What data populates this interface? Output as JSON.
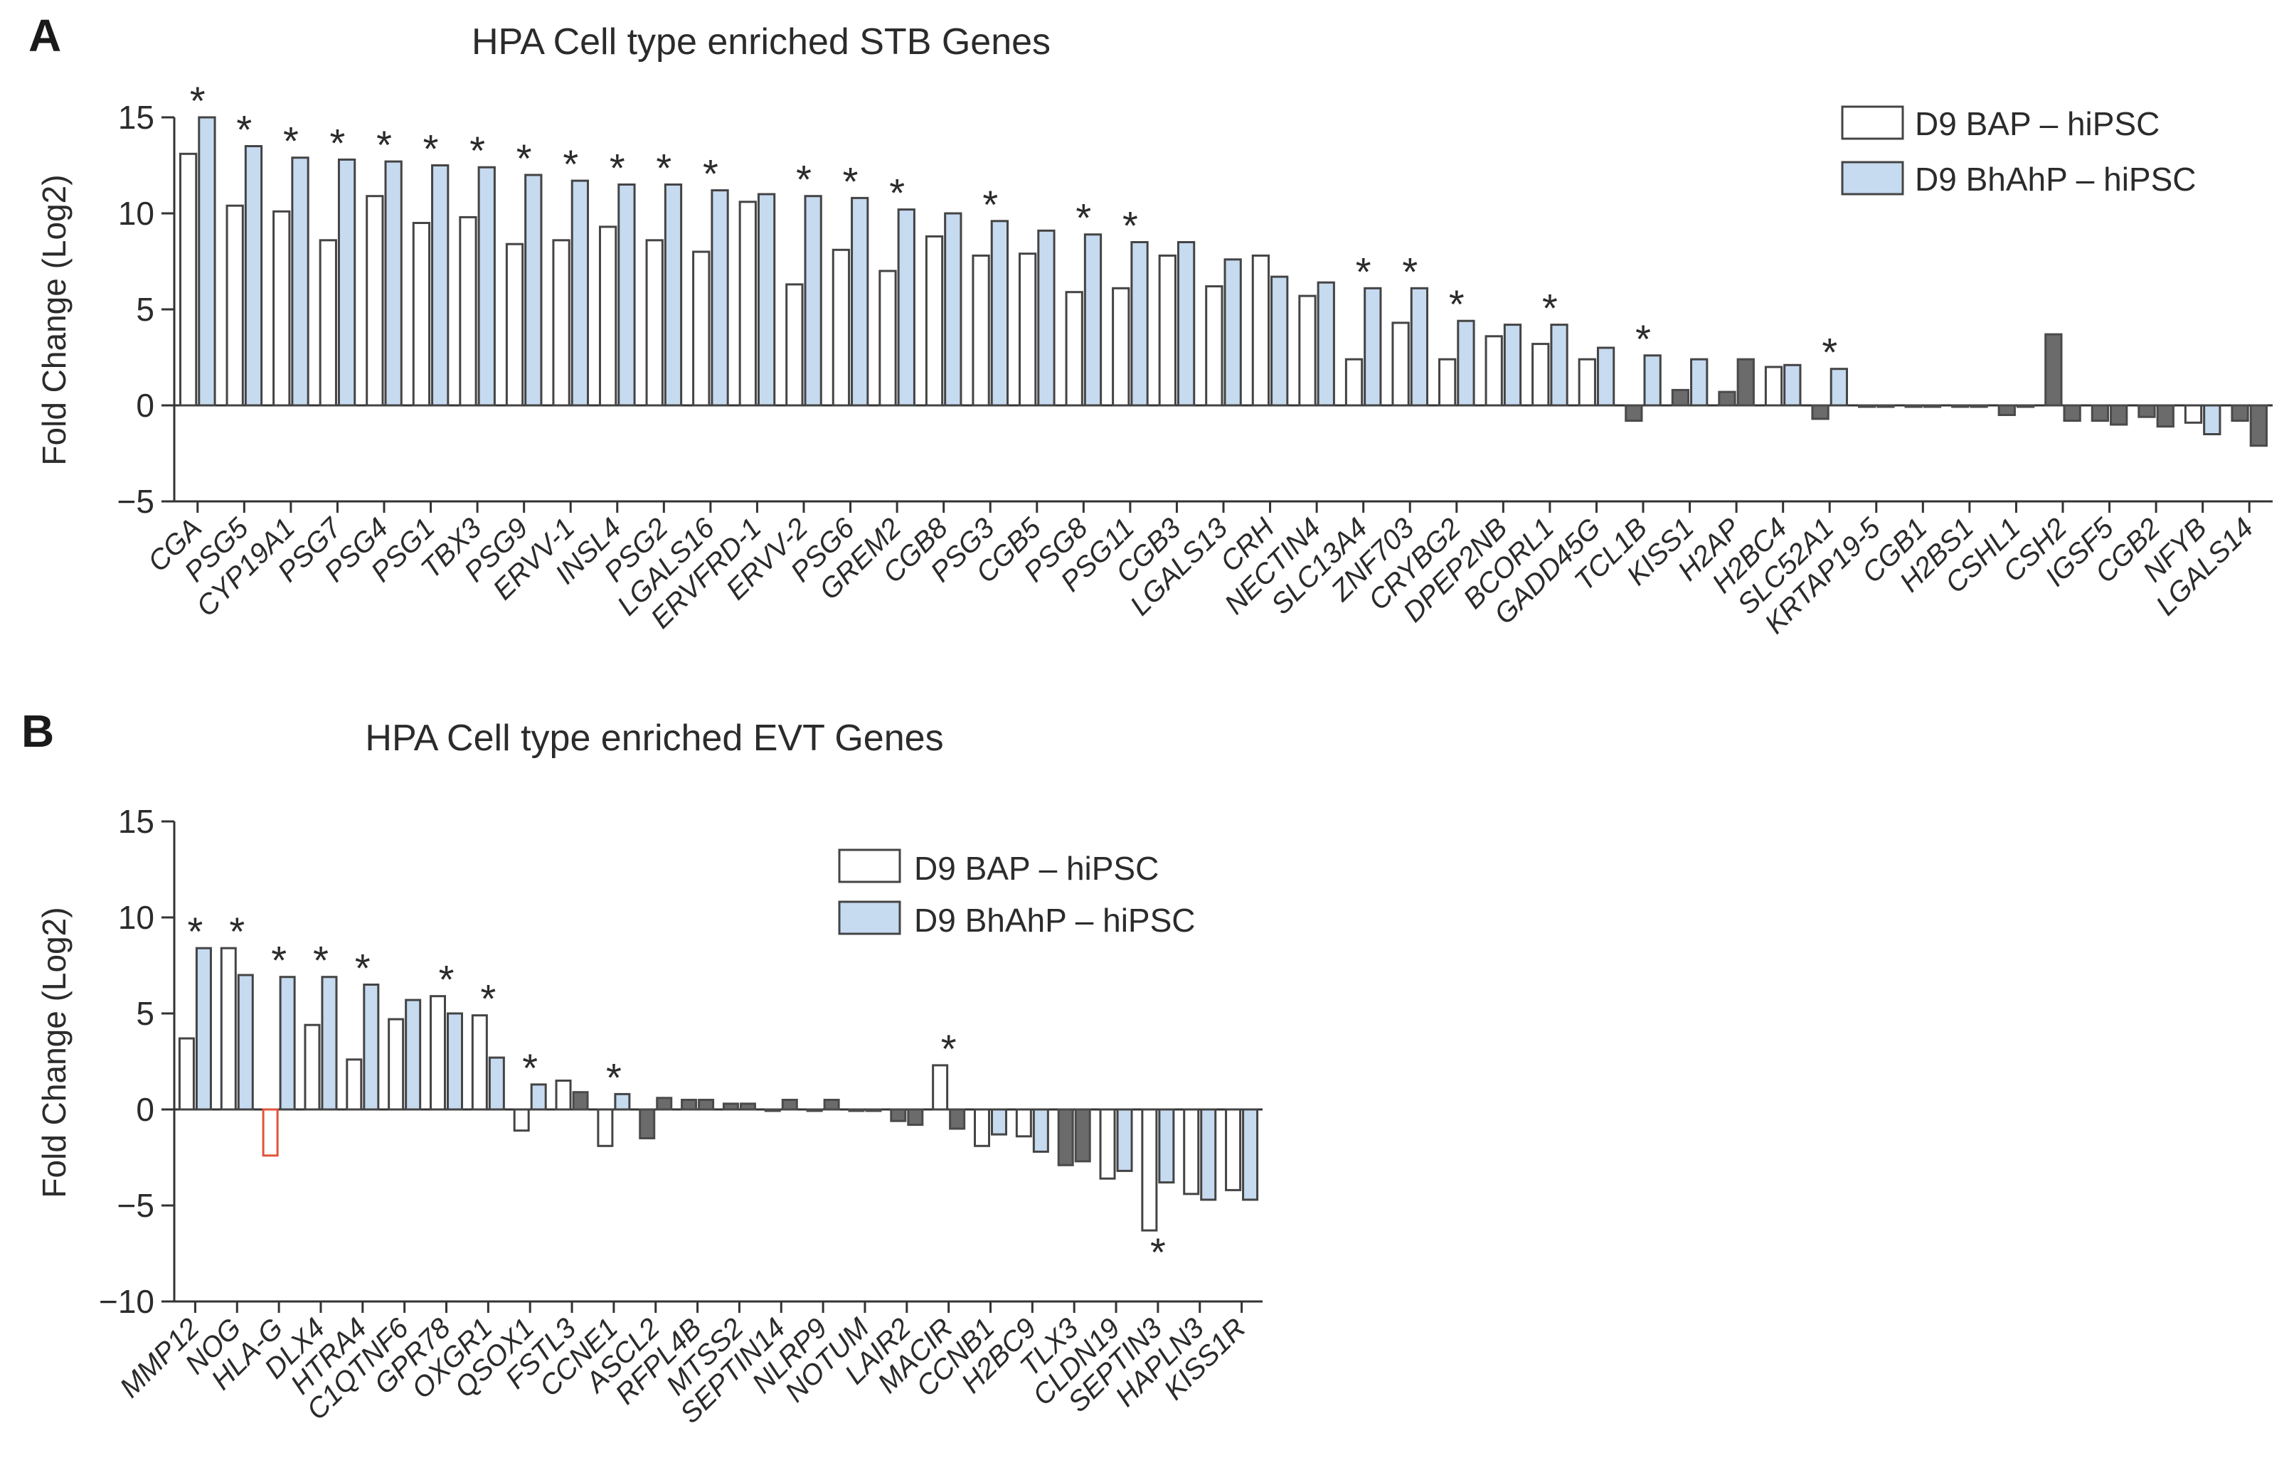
{
  "colors": {
    "bap_fill": "#ffffff",
    "bap_stroke": "#444444",
    "bhahp_fill": "#c6daf0",
    "bhahp_stroke": "#444444",
    "nonsig_fill": "#6b6b6b",
    "highlight_stroke": "#e2533a",
    "axis": "#333333"
  },
  "legend": {
    "bap": "D9 BAP – hiPSC",
    "bhahp": "D9 BhAhP – hiPSC"
  },
  "chart_data": [
    {
      "panel": "A",
      "type": "bar",
      "title": "HPA Cell type enriched STB Genes",
      "xlabel": "",
      "ylabel": "Fold Change (Log2)",
      "ylim": [
        -5,
        15
      ],
      "yticks": [
        -5,
        0,
        5,
        10,
        15
      ],
      "legend_position": "top-right",
      "categories": [
        "CGA",
        "PSG5",
        "CYP19A1",
        "PSG7",
        "PSG4",
        "PSG1",
        "TBX3",
        "PSG9",
        "ERVV-1",
        "INSL4",
        "PSG2",
        "LGALS16",
        "ERVFRD-1",
        "ERVV-2",
        "PSG6",
        "GREM2",
        "CGB8",
        "PSG3",
        "CGB5",
        "PSG8",
        "PSG11",
        "CGB3",
        "LGALS13",
        "CRH",
        "NECTIN4",
        "SLC13A4",
        "ZNF703",
        "CRYBG2",
        "DPEP2NB",
        "BCORL1",
        "GADD45G",
        "TCL1B",
        "KISS1",
        "H2AP",
        "H2BC4",
        "SLC52A1",
        "KRTAP19-5",
        "CGB1",
        "H2BS1",
        "CSHL1",
        "CSH2",
        "IGSF5",
        "CGB2",
        "NFYB",
        "LGALS14"
      ],
      "series": [
        {
          "name": "D9 BAP – hiPSC",
          "values": [
            13.1,
            10.4,
            10.1,
            8.6,
            10.9,
            9.5,
            9.8,
            8.4,
            8.6,
            9.3,
            8.6,
            8.0,
            10.6,
            6.3,
            8.1,
            7.0,
            8.8,
            7.8,
            7.9,
            5.9,
            6.1,
            7.8,
            6.2,
            7.8,
            5.7,
            2.4,
            4.3,
            2.4,
            3.6,
            3.2,
            2.4,
            -0.8,
            0.8,
            0.7,
            2.0,
            -0.7,
            0.0,
            0.0,
            0.0,
            -0.5,
            3.7,
            -0.8,
            -0.6,
            -0.9,
            -0.8
          ]
        },
        {
          "name": "D9 BhAhP – hiPSC",
          "values": [
            15.0,
            13.5,
            12.9,
            12.8,
            12.7,
            12.5,
            12.4,
            12.0,
            11.7,
            11.5,
            11.5,
            11.2,
            11.0,
            10.9,
            10.8,
            10.2,
            10.0,
            9.6,
            9.1,
            8.9,
            8.5,
            8.5,
            7.6,
            6.7,
            6.4,
            6.1,
            6.1,
            4.4,
            4.2,
            4.2,
            3.0,
            2.6,
            2.4,
            2.4,
            2.1,
            1.9,
            0.0,
            0.0,
            0.0,
            0.0,
            -0.8,
            -1.0,
            -1.1,
            -1.5,
            -2.1
          ]
        }
      ],
      "significance": [
        true,
        true,
        true,
        true,
        true,
        true,
        true,
        true,
        true,
        true,
        true,
        true,
        false,
        true,
        true,
        true,
        false,
        true,
        false,
        true,
        true,
        false,
        false,
        false,
        false,
        true,
        true,
        true,
        false,
        true,
        false,
        true,
        false,
        false,
        false,
        true,
        false,
        false,
        false,
        false,
        false,
        false,
        false,
        false,
        false
      ],
      "nonsig_gray": [
        false,
        false,
        false,
        false,
        false,
        false,
        false,
        false,
        false,
        false,
        false,
        false,
        false,
        false,
        false,
        false,
        false,
        false,
        false,
        false,
        false,
        false,
        false,
        false,
        false,
        false,
        false,
        false,
        false,
        false,
        false,
        true,
        true,
        true,
        false,
        true,
        true,
        true,
        true,
        true,
        true,
        true,
        true,
        false,
        true
      ],
      "gray_series": [
        [
          false,
          false,
          false,
          false,
          false,
          false,
          false,
          false,
          false,
          false,
          false,
          false,
          false,
          false,
          false,
          false,
          false,
          false,
          false,
          false,
          false,
          false,
          false,
          false,
          false,
          false,
          false,
          false,
          false,
          false,
          false,
          true,
          true,
          true,
          false,
          true,
          true,
          true,
          true,
          true,
          true,
          true,
          true,
          false,
          true
        ],
        [
          false,
          false,
          false,
          false,
          false,
          false,
          false,
          false,
          false,
          false,
          false,
          false,
          false,
          false,
          false,
          false,
          false,
          false,
          false,
          false,
          false,
          false,
          false,
          false,
          false,
          false,
          false,
          false,
          false,
          false,
          false,
          false,
          false,
          true,
          false,
          false,
          true,
          true,
          true,
          true,
          true,
          true,
          true,
          false,
          true
        ]
      ]
    },
    {
      "panel": "B",
      "type": "bar",
      "title": "HPA Cell type enriched EVT Genes",
      "xlabel": "",
      "ylabel": "Fold Change (Log2)",
      "ylim": [
        -10,
        15
      ],
      "yticks": [
        -10,
        -5,
        0,
        5,
        10,
        15
      ],
      "legend_position": "top-center",
      "categories": [
        "MMP12",
        "NOG",
        "HLA-G",
        "DLX4",
        "HTRA4",
        "C1QTNF6",
        "GPR78",
        "OXGR1",
        "QSOX1",
        "FSTL3",
        "CCNE1",
        "ASCL2",
        "RFPL4B",
        "MTSS2",
        "SEPTIN14",
        "NLRP9",
        "NOTUM",
        "LAIR2",
        "MACIR",
        "CCNB1",
        "H2BC9",
        "TLX3",
        "CLDN19",
        "SEPTIN3",
        "HAPLN3",
        "KISS1R"
      ],
      "series": [
        {
          "name": "D9 BAP – hiPSC",
          "values": [
            3.7,
            8.4,
            -2.4,
            4.4,
            2.6,
            4.7,
            5.9,
            4.9,
            -1.1,
            1.5,
            -1.9,
            -1.5,
            0.5,
            0.3,
            0.0,
            0.0,
            0.0,
            -0.6,
            2.3,
            -1.9,
            -1.4,
            -2.9,
            -3.6,
            -6.3,
            -4.4,
            -4.2
          ]
        },
        {
          "name": "D9 BhAhP – hiPSC",
          "values": [
            8.4,
            7.0,
            6.9,
            6.9,
            6.5,
            5.7,
            5.0,
            2.7,
            1.3,
            0.9,
            0.8,
            0.6,
            0.5,
            0.3,
            0.5,
            0.5,
            0.0,
            -0.8,
            -1.0,
            -1.3,
            -2.2,
            -2.7,
            -3.2,
            -3.8,
            -4.7,
            -4.7
          ]
        }
      ],
      "significance": [
        true,
        true,
        true,
        true,
        true,
        false,
        true,
        true,
        true,
        false,
        true,
        false,
        false,
        false,
        false,
        false,
        false,
        false,
        true,
        false,
        false,
        false,
        false,
        true,
        false,
        false
      ],
      "highlight": [
        false,
        false,
        true,
        false,
        false,
        false,
        false,
        false,
        false,
        false,
        false,
        false,
        false,
        false,
        false,
        false,
        false,
        false,
        false,
        false,
        false,
        false,
        false,
        false,
        false,
        false
      ],
      "gray_series": [
        [
          false,
          false,
          false,
          false,
          false,
          false,
          false,
          false,
          false,
          false,
          false,
          true,
          true,
          true,
          true,
          true,
          true,
          true,
          false,
          false,
          false,
          true,
          false,
          false,
          false,
          false
        ],
        [
          false,
          false,
          false,
          false,
          false,
          false,
          false,
          false,
          false,
          true,
          false,
          true,
          true,
          true,
          true,
          true,
          true,
          true,
          true,
          false,
          false,
          true,
          false,
          false,
          false,
          false
        ]
      ]
    }
  ],
  "star_symbol": "*"
}
